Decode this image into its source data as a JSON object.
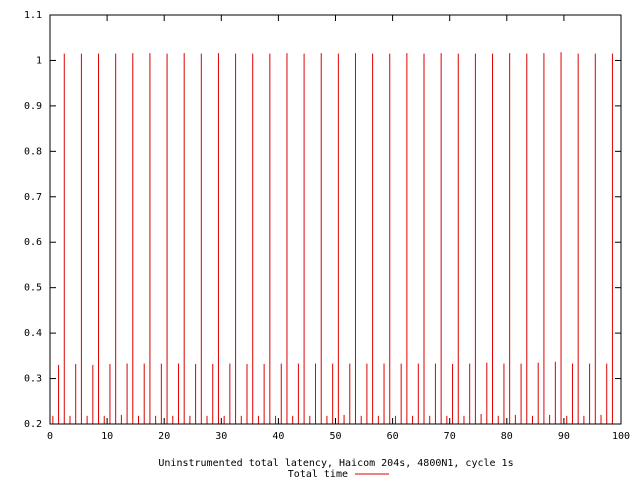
{
  "chart_data": {
    "type": "impulses",
    "xlabel": "Uninstrumented total latency, Haicom 204s, 4800N1, cycle 1s",
    "legend": "top",
    "xlim": [
      0,
      100
    ],
    "xticks": [
      0,
      10,
      20,
      30,
      40,
      50,
      60,
      70,
      80,
      90,
      100
    ],
    "ylim": [
      0.2,
      1.1
    ],
    "yticks": [
      0.2,
      0.3,
      0.4,
      0.5,
      0.6,
      0.7,
      0.8,
      0.9,
      1,
      1.1
    ],
    "x": [
      0.5,
      1.5,
      2.5,
      3.5,
      4.5,
      5.5,
      6.5,
      7.5,
      8.5,
      9.5,
      10.5,
      11.5,
      12.5,
      13.5,
      14.5,
      15.5,
      16.5,
      17.5,
      18.5,
      19.5,
      20.5,
      21.5,
      22.5,
      23.5,
      24.5,
      25.5,
      26.5,
      27.5,
      28.5,
      29.5,
      30.5,
      31.5,
      32.5,
      33.5,
      34.5,
      35.5,
      36.5,
      37.5,
      38.5,
      39.5,
      40.5,
      41.5,
      42.5,
      43.5,
      44.5,
      45.5,
      46.5,
      47.5,
      48.5,
      49.5,
      50.5,
      51.5,
      52.5,
      53.5,
      54.5,
      55.5,
      56.5,
      57.5,
      58.5,
      59.5,
      60.5,
      61.5,
      62.5,
      63.5,
      64.5,
      65.5,
      66.5,
      67.5,
      68.5,
      69.5,
      70.5,
      71.5,
      72.5,
      73.5,
      74.5,
      75.5,
      76.5,
      77.5,
      78.5,
      79.5,
      80.5,
      81.5,
      82.5,
      83.5,
      84.5,
      85.5,
      86.5,
      87.5,
      88.5,
      89.5,
      90.5,
      91.5,
      92.5,
      93.5,
      94.5,
      95.5,
      96.5,
      97.5,
      98.5
    ],
    "series": [
      {
        "name": "Total time",
        "color": "#dd0000",
        "values": [
          0.218,
          0.33,
          1.015,
          0.218,
          0.332,
          1.015,
          0.218,
          0.33,
          1.015,
          0.218,
          0.332,
          1.015,
          0.22,
          0.333,
          1.016,
          0.218,
          0.333,
          1.016,
          0.218,
          0.333,
          1.015,
          0.218,
          0.333,
          1.016,
          0.218,
          0.332,
          1.015,
          0.218,
          0.332,
          1.016,
          0.218,
          0.333,
          1.015,
          0.218,
          0.332,
          1.015,
          0.218,
          0.332,
          1.015,
          0.218,
          0.333,
          1.016,
          0.218,
          0.333,
          1.015,
          0.218,
          0.333,
          1.016,
          0.218,
          0.333,
          1.015,
          0.22,
          0.333,
          1.016,
          0.218,
          0.333,
          1.015,
          0.218,
          0.333,
          1.015,
          0.218,
          0.333,
          1.016,
          0.218,
          0.333,
          1.015,
          0.218,
          0.333,
          1.016,
          0.218,
          0.332,
          1.015,
          0.218,
          0.333,
          1.015,
          0.222,
          0.335,
          1.015,
          0.218,
          0.333,
          1.016,
          0.22,
          0.333,
          1.015,
          0.218,
          0.335,
          1.016,
          0.22,
          0.337,
          1.018,
          0.218,
          0.333,
          1.015,
          0.218,
          0.333,
          1.015,
          0.22,
          0.333,
          1.015
        ]
      }
    ]
  }
}
